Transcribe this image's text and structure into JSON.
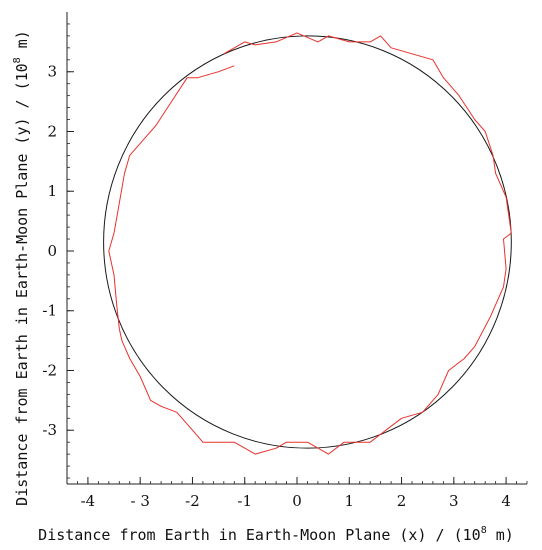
{
  "chart_data": {
    "type": "line",
    "title": "",
    "xlabel": "Distance from Earth in Earth-Moon Plane (x) / (10",
    "xlabel_exp": "8",
    "xlabel_end": " m)",
    "ylabel": "Distance from Earth in Earth-Moon Plane (y) / (10",
    "ylabel_exp": "8",
    "ylabel_end": " m)",
    "xlim": [
      -4.4,
      4.4
    ],
    "ylim": [
      -3.9,
      4.0
    ],
    "xticks": [
      -4,
      -3,
      -2,
      -1,
      0,
      1,
      2,
      3,
      4
    ],
    "xtick_labels": [
      "-4",
      "- 3",
      "-2",
      "-1",
      "0",
      "1",
      "2",
      "3",
      "4"
    ],
    "yticks": [
      -3,
      -2,
      -1,
      0,
      1,
      2,
      3
    ],
    "ytick_labels": [
      "-3",
      "-2",
      "-1",
      "0",
      "1",
      "2",
      "3"
    ],
    "grid": false,
    "legend": false,
    "series": [
      {
        "kind": "circle",
        "color": "#1a1a1a",
        "center": [
          0.2,
          0.15
        ],
        "radius_x": 3.9,
        "radius_y": 3.45
      },
      {
        "kind": "line",
        "color": "#e8302a",
        "x": [
          -1.2,
          -1.5,
          -1.9,
          -2.1,
          -2.4,
          -2.7,
          -3.0,
          -3.2,
          -3.3,
          -3.4,
          -3.5,
          -3.6,
          -3.5,
          -3.45,
          -3.4,
          -3.35,
          -3.2,
          -3.0,
          -2.8,
          -2.6,
          -2.3,
          -2.0,
          -1.8,
          -1.6,
          -1.2,
          -0.8,
          -0.4,
          -0.2,
          0.2,
          0.6,
          0.9,
          1.2,
          1.4,
          1.7,
          2.0,
          2.4,
          2.7,
          2.9,
          3.2,
          3.4,
          3.7,
          3.95,
          4.0,
          3.95,
          4.1,
          4.0,
          3.8,
          3.75,
          3.6,
          3.4,
          3.1,
          2.8,
          2.6,
          2.2,
          1.8,
          1.6,
          1.4,
          1.0,
          0.6,
          0.4,
          0.0,
          -0.4,
          -0.8,
          -1.0,
          -1.4
        ],
        "y": [
          3.1,
          3.0,
          2.9,
          2.9,
          2.5,
          2.1,
          1.8,
          1.6,
          1.3,
          0.8,
          0.3,
          0.0,
          -0.4,
          -0.9,
          -1.3,
          -1.5,
          -1.8,
          -2.1,
          -2.5,
          -2.6,
          -2.7,
          -3.0,
          -3.2,
          -3.2,
          -3.2,
          -3.4,
          -3.3,
          -3.2,
          -3.2,
          -3.4,
          -3.2,
          -3.2,
          -3.2,
          -3.0,
          -2.8,
          -2.7,
          -2.4,
          -2.0,
          -1.8,
          -1.6,
          -1.1,
          -0.6,
          -0.3,
          0.2,
          0.3,
          0.9,
          1.3,
          1.6,
          2.0,
          2.2,
          2.6,
          2.9,
          3.2,
          3.3,
          3.4,
          3.6,
          3.5,
          3.5,
          3.6,
          3.5,
          3.65,
          3.5,
          3.45,
          3.5,
          3.3
        ]
      }
    ]
  }
}
